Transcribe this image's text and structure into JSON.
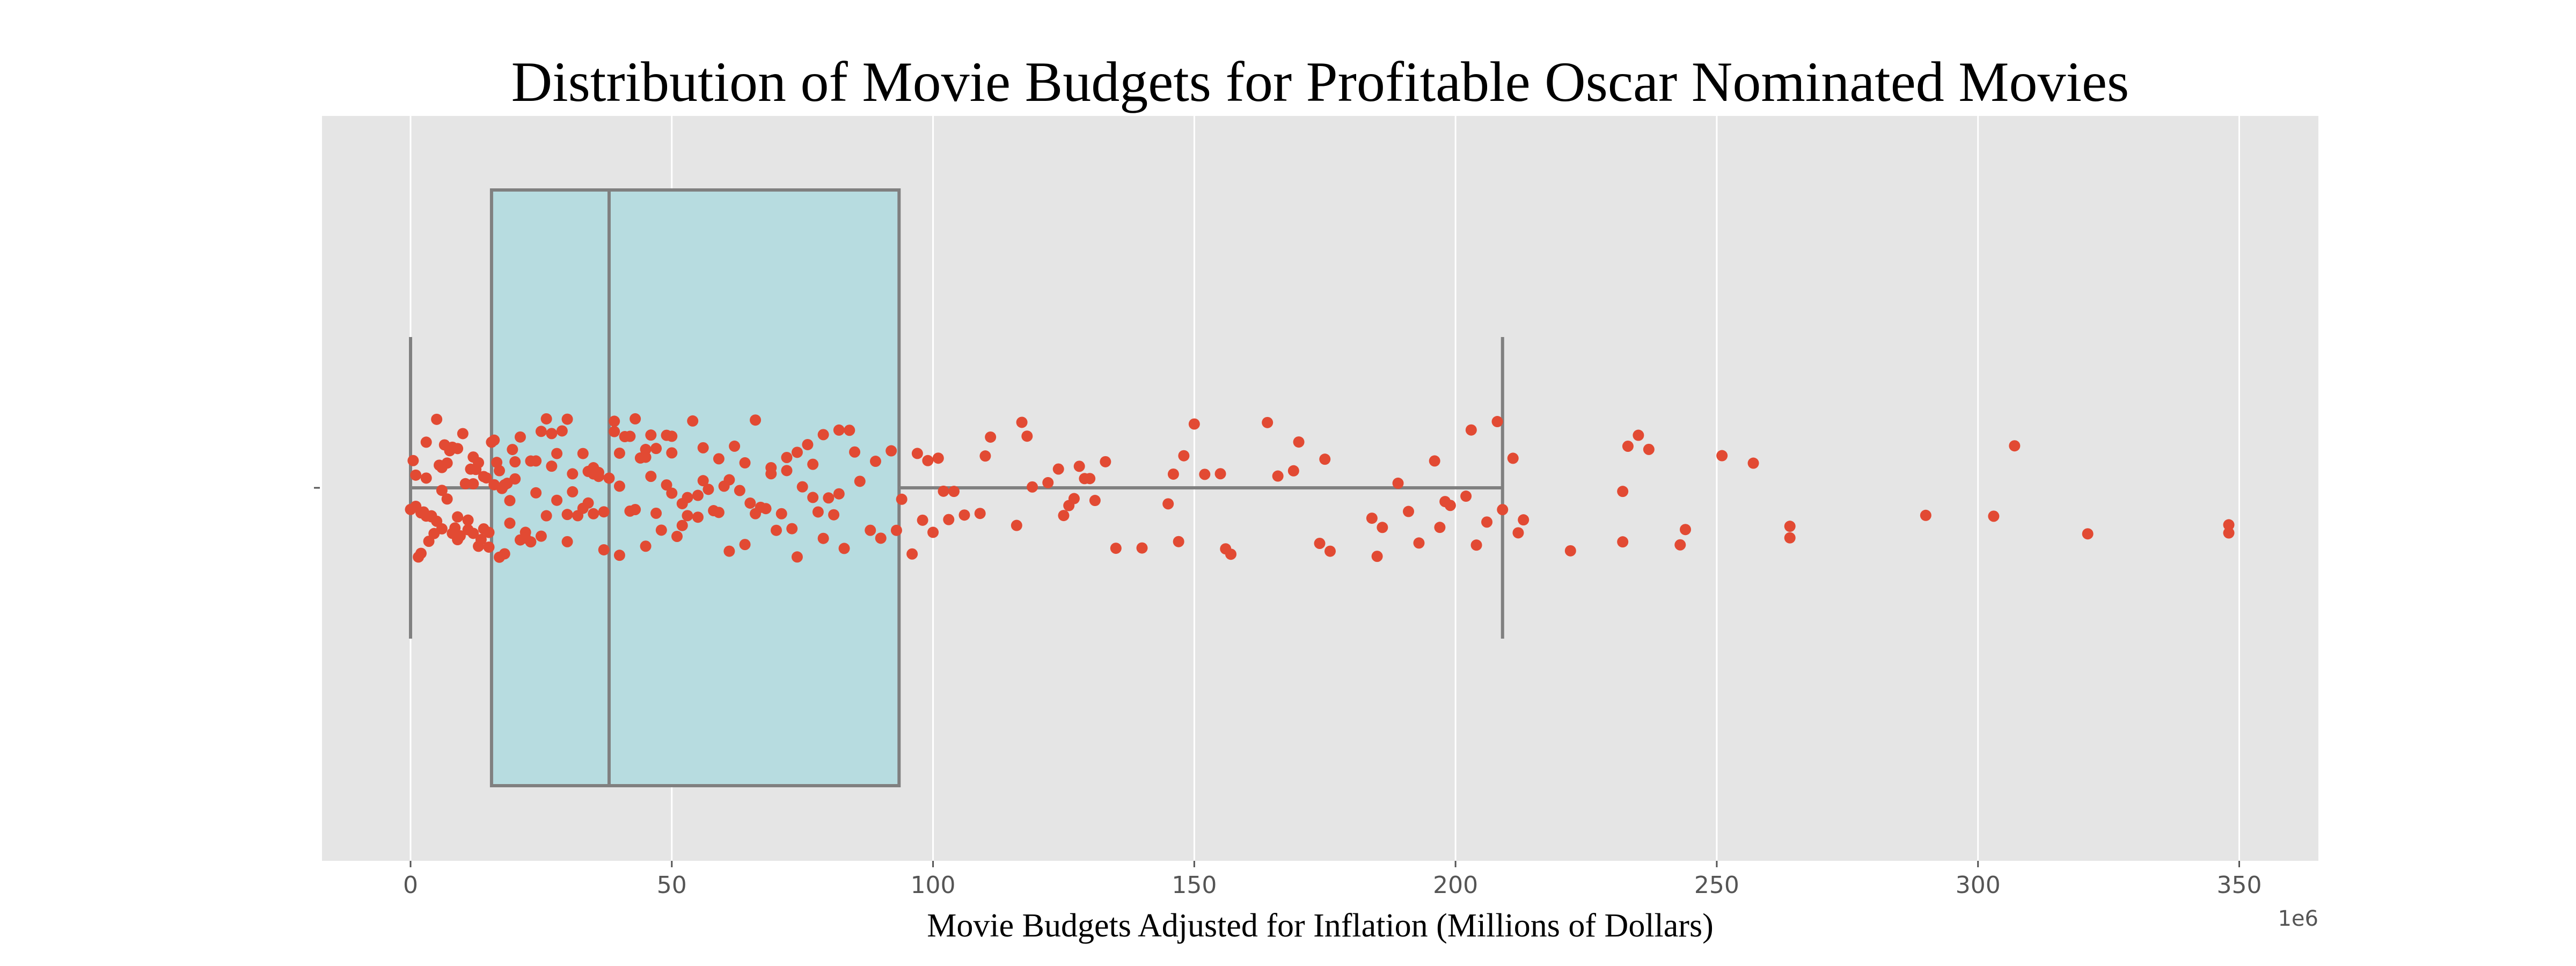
{
  "chart_data": {
    "type": "box",
    "title": "Distribution of Movie Budgets for Profitable Oscar Nominated Movies",
    "xlabel": "Movie Budgets Adjusted for Inflation (Millions of Dollars)",
    "ylabel": "",
    "x_offset_label": "1e6",
    "xlim": [
      -16,
      365
    ],
    "x_ticks": [
      0,
      50,
      100,
      150,
      200,
      250,
      300,
      350
    ],
    "x_tick_labels": [
      "0",
      "50",
      "100",
      "150",
      "200",
      "250",
      "300",
      "350"
    ],
    "grid": true,
    "colors": {
      "plot_background": "#e5e5e5",
      "grid": "#ffffff",
      "box_fill": "#b7dce0",
      "box_edge": "#808080",
      "points": "#e24a33"
    },
    "box": {
      "min": 0,
      "q1": 15.5,
      "median": 38,
      "q3": 93.5,
      "whisker_high": 209
    },
    "points": [
      0,
      0.5,
      1,
      1.5,
      2,
      2.5,
      3,
      3.5,
      4,
      4.5,
      5,
      5.5,
      6,
      6.5,
      7,
      7.5,
      8,
      8.5,
      9,
      9.5,
      10,
      10.5,
      11,
      11.5,
      12,
      12.5,
      13,
      13.5,
      14,
      14.5,
      15,
      15.5,
      16,
      16.5,
      17,
      17.5,
      18,
      18.5,
      19,
      19.5,
      20,
      21,
      22,
      23,
      24,
      25,
      26,
      27,
      28,
      29,
      30,
      31,
      32,
      33,
      34,
      35,
      36,
      37,
      38,
      39,
      40,
      41,
      42,
      43,
      44,
      45,
      46,
      47,
      48,
      49,
      50,
      51,
      52,
      53,
      54,
      55,
      56,
      57,
      58,
      59,
      60,
      61,
      62,
      63,
      64,
      65,
      66,
      67,
      68,
      69,
      70,
      71,
      72,
      73,
      74,
      75,
      76,
      77,
      78,
      79,
      80,
      81,
      82,
      83,
      84,
      85,
      86,
      88,
      89,
      90,
      92,
      93,
      1,
      3,
      5,
      7,
      9,
      12,
      14,
      17,
      19,
      22,
      24,
      26,
      28,
      31,
      33,
      35,
      37,
      40,
      43,
      45,
      47,
      50,
      53,
      56,
      59,
      61,
      64,
      66,
      69,
      72,
      74,
      77,
      79,
      82,
      2,
      4,
      6,
      8,
      11,
      13,
      16,
      18,
      21,
      23,
      27,
      30,
      34,
      36,
      39,
      42,
      46,
      49,
      52,
      55,
      3,
      6,
      9,
      12,
      15,
      20,
      25,
      30,
      35,
      40,
      45,
      50,
      94,
      96,
      97,
      98,
      99,
      100,
      101,
      102,
      103,
      104,
      106,
      109,
      110,
      111,
      116,
      117,
      118,
      119,
      122,
      124,
      125,
      126,
      127,
      128,
      129,
      130,
      131,
      133,
      135,
      140,
      145,
      146,
      147,
      148,
      150,
      152,
      155,
      156,
      157,
      164,
      166,
      169,
      170,
      174,
      175,
      176,
      184,
      185,
      186,
      189,
      191,
      193,
      196,
      197,
      198,
      199,
      202,
      203,
      204,
      206,
      208,
      209,
      211,
      212,
      213,
      222,
      232,
      232,
      233,
      235,
      237,
      243,
      244,
      251,
      257,
      264,
      264,
      290,
      303,
      307,
      321,
      348,
      348
    ]
  }
}
